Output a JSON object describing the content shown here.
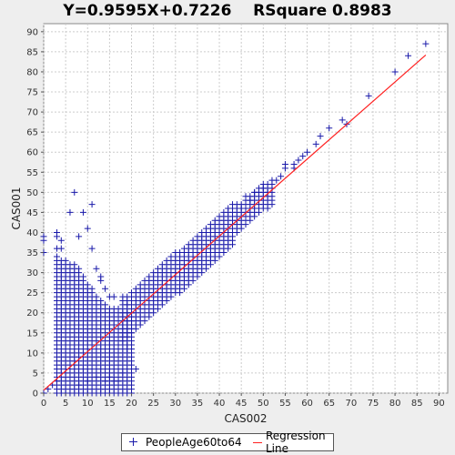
{
  "chart_data": {
    "type": "scatter",
    "title": "Y=0.9595X+0.7226    RSquare 0.8983",
    "xlabel": "CAS002",
    "ylabel": "CAS001",
    "xlim": [
      0,
      92
    ],
    "ylim": [
      0,
      92
    ],
    "xticks": [
      "0",
      "5",
      "10",
      "15",
      "20",
      "25",
      "30",
      "35",
      "40",
      "45",
      "50",
      "55",
      "60",
      "65",
      "70",
      "75",
      "80",
      "85",
      "90"
    ],
    "yticks": [
      "0",
      "5",
      "10",
      "15",
      "20",
      "25",
      "30",
      "35",
      "40",
      "45",
      "50",
      "55",
      "60",
      "65",
      "70",
      "75",
      "80",
      "85",
      "90"
    ],
    "grid": true,
    "legend_position": "bottom",
    "series": [
      {
        "name": "PeopleAge60to64",
        "marker": "plus",
        "color": "#1a1aaa",
        "points": [
          [
            0,
            0
          ],
          [
            1,
            1
          ],
          [
            2,
            2
          ],
          [
            3,
            3
          ],
          [
            0,
            35
          ],
          [
            0,
            38
          ],
          [
            0,
            39
          ],
          [
            3,
            40
          ],
          [
            3,
            39
          ],
          [
            3,
            36
          ],
          [
            4,
            38
          ],
          [
            4,
            36
          ],
          [
            6,
            45
          ],
          [
            7,
            50
          ],
          [
            8,
            39
          ],
          [
            9,
            45
          ],
          [
            10,
            41
          ],
          [
            11,
            47
          ],
          [
            11,
            36
          ],
          [
            12,
            31
          ],
          [
            13,
            29
          ],
          [
            13,
            28
          ],
          [
            14,
            26
          ],
          [
            15,
            24
          ],
          [
            16,
            24
          ],
          [
            18,
            24
          ],
          [
            19,
            22
          ],
          [
            21,
            6
          ],
          [
            18,
            5
          ],
          [
            17,
            3
          ],
          [
            16,
            3
          ],
          [
            9,
            6
          ],
          [
            10,
            3
          ],
          [
            8,
            2
          ],
          [
            12,
            4
          ],
          [
            15,
            4
          ],
          [
            14,
            3
          ],
          [
            19,
            11
          ],
          [
            20,
            11
          ],
          [
            19,
            12
          ],
          [
            44,
            47
          ],
          [
            45,
            46
          ],
          [
            46,
            49
          ],
          [
            47,
            48
          ],
          [
            48,
            50
          ],
          [
            49,
            50
          ],
          [
            50,
            51
          ],
          [
            51,
            50
          ],
          [
            52,
            52
          ],
          [
            53,
            53
          ],
          [
            54,
            54
          ],
          [
            55,
            56
          ],
          [
            55,
            57
          ],
          [
            57,
            56
          ],
          [
            57,
            57
          ],
          [
            58,
            58
          ],
          [
            59,
            59
          ],
          [
            60,
            60
          ],
          [
            62,
            62
          ],
          [
            63,
            64
          ],
          [
            65,
            66
          ],
          [
            68,
            68
          ],
          [
            69,
            67
          ],
          [
            74,
            74
          ],
          [
            80,
            80
          ],
          [
            83,
            84
          ],
          [
            87,
            87
          ]
        ],
        "bands": [
          {
            "x": [
              3,
              20
            ],
            "ymin_at_x": 0,
            "note": "dense cluster"
          }
        ]
      },
      {
        "name": "Regression Line",
        "color": "#ff2020",
        "slope": 0.9595,
        "intercept": 0.7226,
        "x_range": [
          0,
          87
        ]
      }
    ]
  }
}
